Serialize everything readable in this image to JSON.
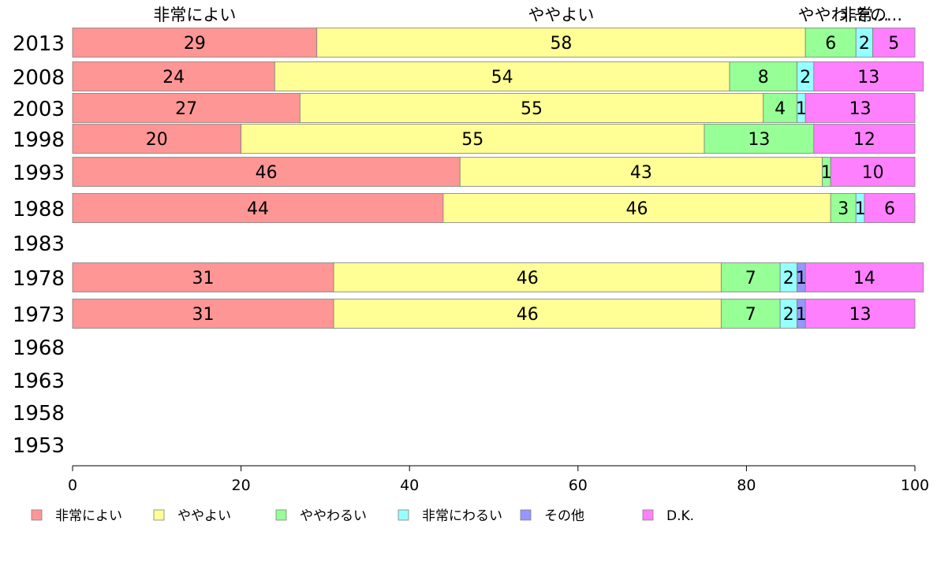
{
  "chart_data": {
    "type": "bar",
    "orientation": "horizontal",
    "stacked": true,
    "categories": [
      "2013",
      "2008",
      "2003",
      "1998",
      "1993",
      "1988",
      "1983",
      "1978",
      "1973",
      "1968",
      "1963",
      "1958",
      "1953"
    ],
    "series": [
      {
        "name": "非常によい",
        "color": "#ff9696",
        "values": [
          29,
          24,
          27,
          20,
          46,
          44,
          null,
          31,
          31,
          null,
          null,
          null,
          null
        ]
      },
      {
        "name": "ややよい",
        "color": "#ffff96",
        "values": [
          58,
          54,
          55,
          55,
          43,
          46,
          null,
          46,
          46,
          null,
          null,
          null,
          null
        ]
      },
      {
        "name": "ややわるい",
        "color": "#96ff96",
        "values": [
          6,
          8,
          4,
          13,
          1,
          3,
          null,
          7,
          7,
          null,
          null,
          null,
          null
        ]
      },
      {
        "name": "非常にわるい",
        "color": "#96ffff",
        "values": [
          2,
          2,
          1,
          0,
          0,
          1,
          null,
          2,
          2,
          null,
          null,
          null,
          null
        ]
      },
      {
        "name": "その他",
        "color": "#9696ff",
        "values": [
          0,
          0,
          0,
          0,
          0,
          0,
          null,
          1,
          1,
          null,
          null,
          null,
          null
        ]
      },
      {
        "name": "D.K.",
        "color": "#ff80ff",
        "values": [
          5,
          13,
          13,
          12,
          10,
          6,
          null,
          14,
          13,
          null,
          null,
          null,
          null
        ]
      }
    ],
    "top_labels": [
      "非常によい",
      "ややよい",
      "ややわ...",
      "非常...",
      "その..."
    ],
    "xlim": [
      0,
      100
    ],
    "xticks": [
      "0",
      "20",
      "40",
      "60",
      "80",
      "100"
    ],
    "grid": false,
    "legend_position": "bottom"
  }
}
